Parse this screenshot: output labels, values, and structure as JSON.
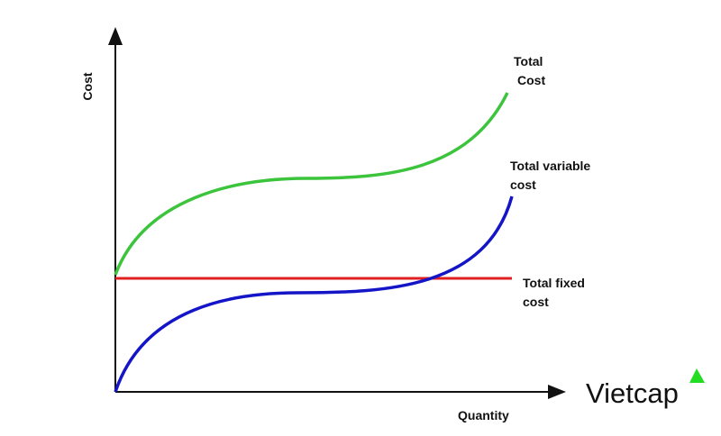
{
  "diagram": {
    "axes": {
      "y_label": "Cost",
      "x_label": "Quantity"
    },
    "curves": [
      {
        "label_lines": [
          "Total",
          "Cost"
        ]
      },
      {
        "label_lines": [
          "Total variable",
          "cost"
        ]
      },
      {
        "label_lines": [
          "Total fixed",
          "cost"
        ]
      }
    ],
    "logo": "Vietcap"
  }
}
